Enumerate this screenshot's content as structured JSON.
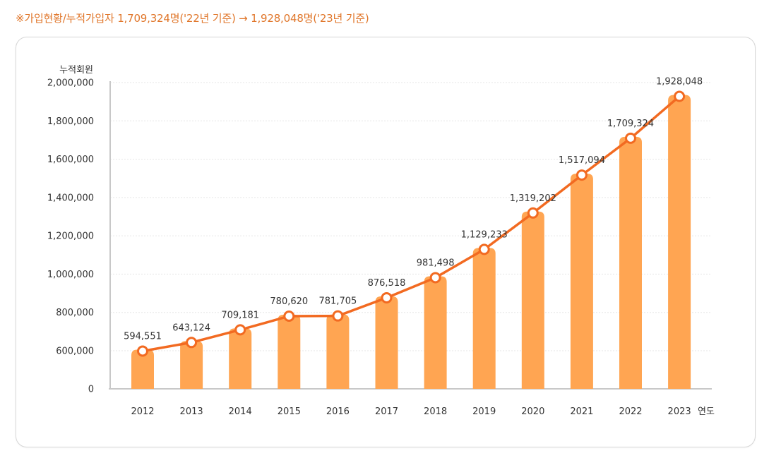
{
  "note": "※가입현황/누적가입자 1,709,324명('22년 기준) → 1,928,048명('23년 기준)",
  "colors": {
    "bar": "#ffa552",
    "line": "#f26a21",
    "note": "#e0762a",
    "axis": "#c8c8c8",
    "grid": "#e6e6e6",
    "text": "#333333"
  },
  "chart_data": {
    "type": "bar",
    "ylabel": "누적회원",
    "xlabel": "연도",
    "categories": [
      "2012",
      "2013",
      "2014",
      "2015",
      "2016",
      "2017",
      "2018",
      "2019",
      "2020",
      "2021",
      "2022",
      "2023"
    ],
    "values": [
      594551,
      643124,
      709181,
      780620,
      781705,
      876518,
      981498,
      1129233,
      1319202,
      1517094,
      1709324,
      1928048
    ],
    "value_labels": [
      "594,551",
      "643,124",
      "709,181",
      "780,620",
      "781,705",
      "876,518",
      "981,498",
      "1,129,233",
      "1,319,202",
      "1,517,094",
      "1,709,324",
      "1,928,048"
    ],
    "yticks": [
      "0",
      "600,000",
      "800,000",
      "1,000,000",
      "1,200,000",
      "1,400,000",
      "1,600,000",
      "1,800,000",
      "2,000,000"
    ],
    "ytick_values": [
      0,
      600000,
      800000,
      1000000,
      1200000,
      1400000,
      1600000,
      1800000,
      2000000
    ],
    "ylim": [
      0,
      2000000
    ],
    "grid": true,
    "overlay": "line with markers"
  }
}
